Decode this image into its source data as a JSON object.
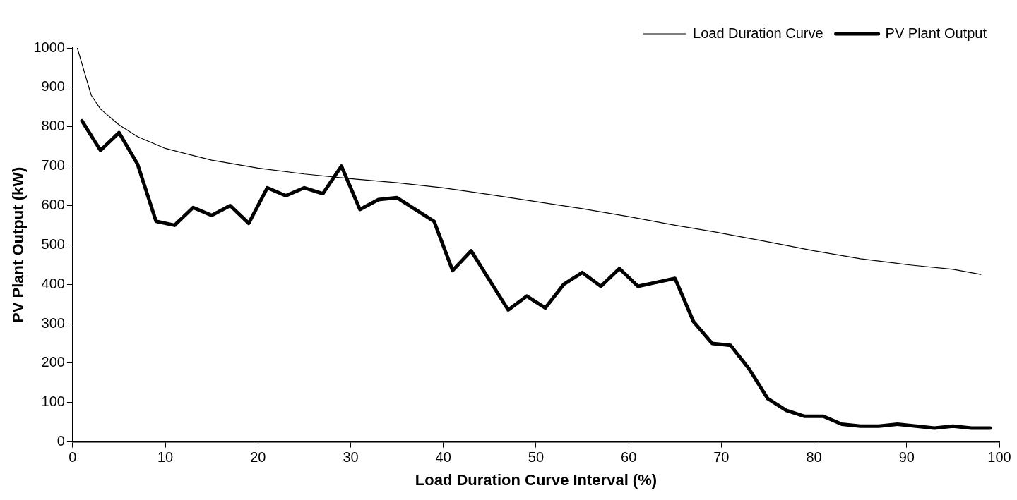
{
  "chart_data": {
    "type": "line",
    "xlabel": "Load Duration Curve Interval (%)",
    "ylabel": "PV Plant Output (kW)",
    "xlim": [
      0,
      100
    ],
    "xticks": [
      0,
      10,
      20,
      30,
      40,
      50,
      60,
      70,
      80,
      90,
      100
    ],
    "ylim": [
      0,
      1000
    ],
    "yticks": [
      0,
      100,
      200,
      300,
      400,
      500,
      600,
      700,
      800,
      900,
      1000
    ],
    "grid": false,
    "legend": "top right",
    "marker": "none",
    "series": [
      {
        "name": "Load Duration Curve",
        "color": "#000000",
        "line_style": "solid",
        "x": [
          0.5,
          1,
          2,
          3,
          5,
          7,
          10,
          15,
          20,
          25,
          30,
          35,
          40,
          45,
          50,
          55,
          60,
          65,
          70,
          75,
          80,
          85,
          90,
          95,
          98
        ],
        "values": [
          1000,
          960,
          880,
          845,
          805,
          775,
          745,
          715,
          695,
          680,
          668,
          658,
          645,
          628,
          610,
          592,
          572,
          550,
          530,
          508,
          485,
          465,
          450,
          438,
          425
        ]
      },
      {
        "name": "PV Plant Output",
        "color": "#000000",
        "line_style": "solid",
        "x": [
          1,
          3,
          5,
          7,
          9,
          11,
          13,
          15,
          17,
          19,
          21,
          23,
          25,
          27,
          29,
          31,
          33,
          35,
          37,
          39,
          41,
          43,
          45,
          47,
          49,
          51,
          53,
          55,
          57,
          59,
          61,
          63,
          65,
          67,
          69,
          71,
          73,
          75,
          77,
          79,
          81,
          83,
          85,
          87,
          89,
          91,
          93,
          95,
          97,
          99
        ],
        "values": [
          815,
          740,
          785,
          705,
          560,
          550,
          595,
          575,
          600,
          555,
          645,
          625,
          645,
          630,
          700,
          590,
          615,
          620,
          590,
          560,
          435,
          485,
          410,
          335,
          370,
          340,
          400,
          430,
          395,
          440,
          395,
          405,
          415,
          305,
          250,
          245,
          185,
          110,
          80,
          65,
          65,
          45,
          40,
          40,
          45,
          40,
          35,
          40,
          35,
          35
        ]
      }
    ]
  }
}
